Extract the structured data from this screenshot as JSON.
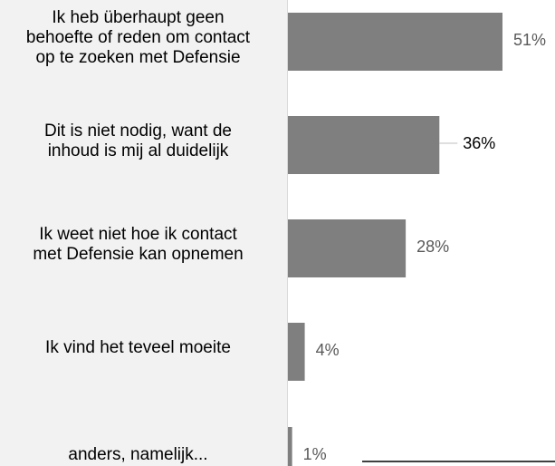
{
  "chart_data": {
    "type": "bar",
    "orientation": "horizontal",
    "categories": [
      "Ik heb überhaupt geen behoefte of reden om contact op te zoeken met Defensie",
      "Dit is niet nodig, want de inhoud is mij al duidelijk",
      "Ik weet niet hoe ik contact met Defensie kan opnemen",
      "Ik vind het teveel moeite",
      "anders, namelijk..."
    ],
    "label_lines": [
      [
        "Ik heb überhaupt geen",
        "behoefte of reden om contact",
        "op te zoeken met Defensie"
      ],
      [
        "Dit is niet nodig, want de",
        "inhoud is mij al duidelijk"
      ],
      [
        "Ik weet niet hoe ik contact",
        "met Defensie kan opnemen"
      ],
      [
        "Ik vind het teveel moeite"
      ],
      [
        "anders, namelijk..."
      ]
    ],
    "values": [
      51,
      36,
      28,
      4,
      1
    ],
    "value_labels": [
      "51%",
      "36%",
      "28%",
      "4%",
      "1%"
    ],
    "xlim": [
      0,
      51
    ],
    "bar_color": "#7f7f7f",
    "highlight_index": 1,
    "grid": false
  }
}
